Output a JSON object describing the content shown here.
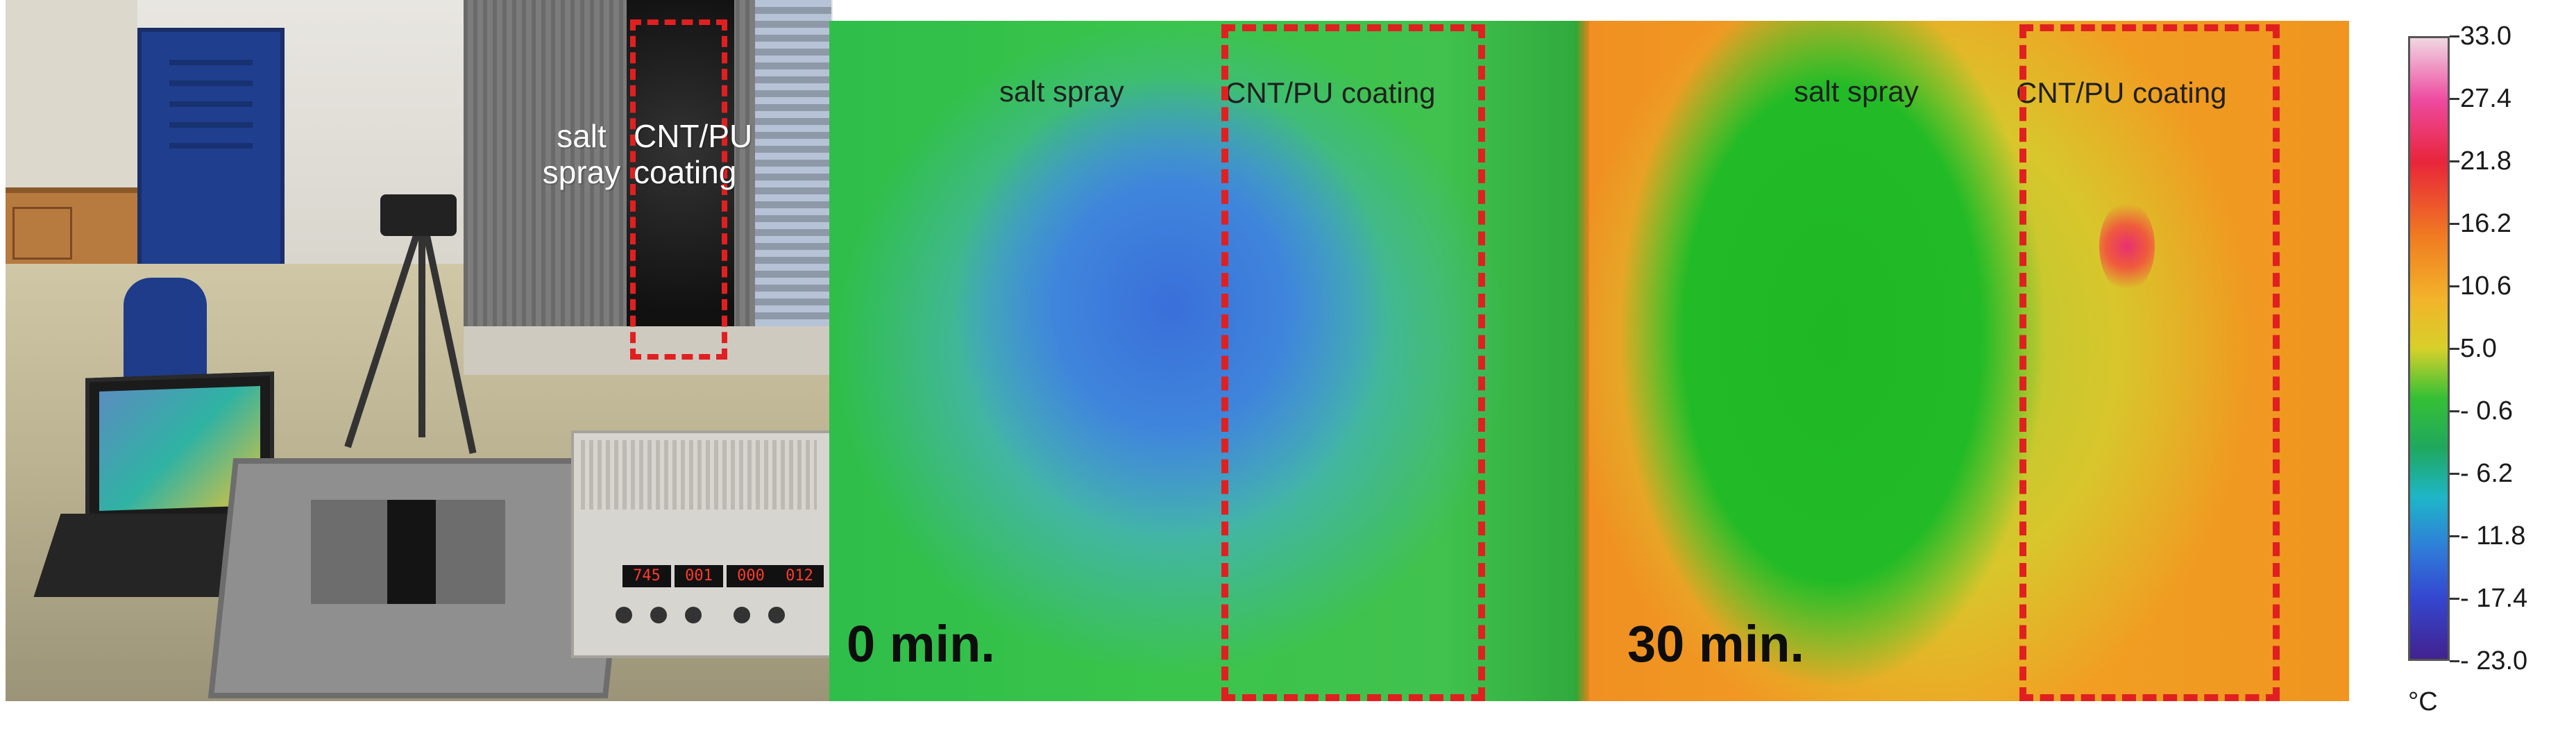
{
  "photo": {
    "label_salt_spray": "salt\nspray",
    "label_coating": "CNT/PU\ncoating",
    "psu_displays": [
      "745",
      "001",
      "000",
      "012"
    ]
  },
  "thermal_0": {
    "label_salt": "salt spray",
    "label_coating": "CNT/PU coating",
    "time": "0 min."
  },
  "thermal_30": {
    "label_salt": "salt spray",
    "label_coating": "CNT/PU coating",
    "time": "30 min."
  },
  "scale": {
    "ticks": [
      "33.0",
      "27.4",
      "21.8",
      "16.2",
      "10.6",
      "5.0",
      "- 0.6",
      "- 6.2",
      "- 11.8",
      "- 17.4",
      "- 23.0"
    ],
    "unit": "°C",
    "colors": {
      "hot_end": "#f0d7e2",
      "cold_end": "#42228f",
      "dashed_box": "#e02020"
    }
  }
}
